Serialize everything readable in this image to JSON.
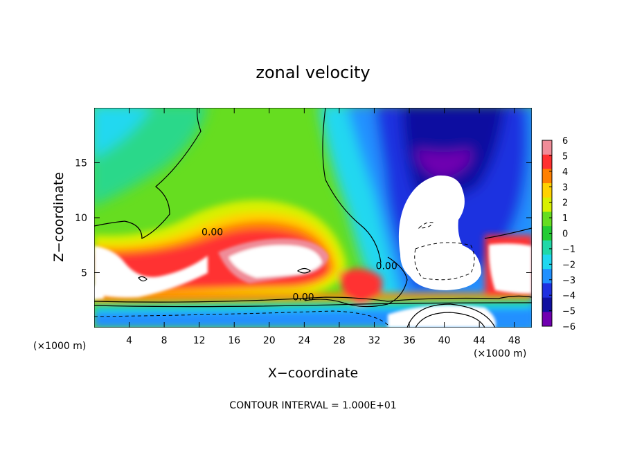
{
  "chart_data": {
    "type": "heatmap",
    "title": "zonal velocity",
    "xlabel": "X−coordinate",
    "ylabel": "Z−coordinate",
    "x_unit_left": "(×1000 m)",
    "x_unit_right": "(×1000 m)",
    "xlim": [
      0,
      50
    ],
    "ylim": [
      0,
      20
    ],
    "x_ticks": [
      4,
      8,
      12,
      16,
      20,
      24,
      28,
      32,
      36,
      40,
      44,
      48
    ],
    "y_ticks": [
      5,
      10,
      15
    ],
    "colorbar": {
      "min": -6,
      "max": 6,
      "ticks": [
        "6",
        "5",
        "4",
        "3",
        "2",
        "1",
        "0",
        "−1",
        "−2",
        "−3",
        "−4",
        "−5",
        "−6"
      ],
      "colors": [
        "#f08c98",
        "#ff3030",
        "#ff8000",
        "#ffd200",
        "#d8f000",
        "#66dd20",
        "#22cc33",
        "#20d8a8",
        "#20d8f0",
        "#2090ff",
        "#1f30e0",
        "#1010a0",
        "#7000b0"
      ]
    },
    "contour_labels": [
      {
        "text": "0.00",
        "x": 13.5,
        "y": 8.4
      },
      {
        "text": "0.00",
        "x": 23.9,
        "y": 2.5
      },
      {
        "text": "0.00",
        "x": 33.4,
        "y": 5.3
      }
    ],
    "footer": "CONTOUR INTERVAL = 1.000E+01"
  }
}
